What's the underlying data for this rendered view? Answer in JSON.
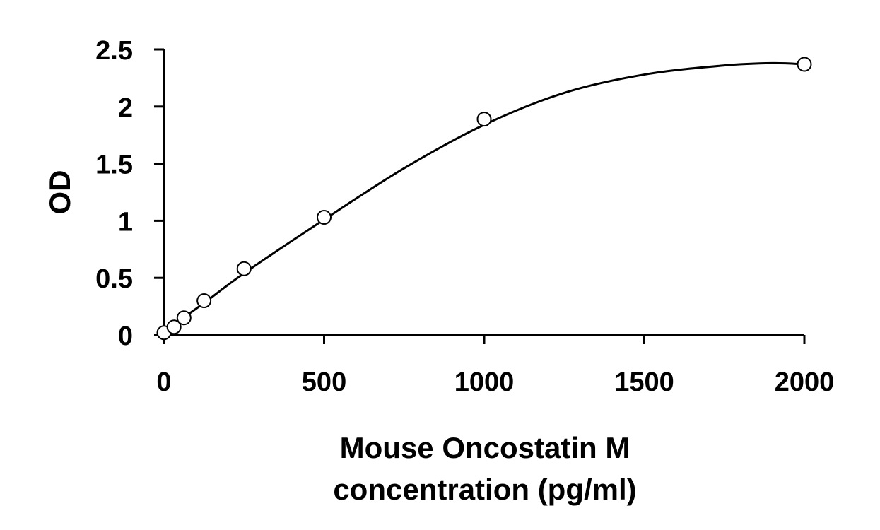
{
  "chart_data": {
    "type": "scatter",
    "title": "",
    "xlabel_lines": [
      "Mouse Oncostatin M",
      "concentration (pg/ml)"
    ],
    "ylabel": "OD",
    "xlim": [
      0,
      2000
    ],
    "ylim": [
      0,
      2.5
    ],
    "x_ticks": [
      0,
      500,
      1000,
      1500,
      2000
    ],
    "x_tick_labels": [
      "0",
      "500",
      "1000",
      "1500",
      "2000"
    ],
    "y_ticks": [
      0,
      0.5,
      1,
      1.5,
      2,
      2.5
    ],
    "y_tick_labels": [
      "0",
      "0.5",
      "1",
      "1.5",
      "2",
      "2.5"
    ],
    "grid": false,
    "legend": "none",
    "series": [
      {
        "points": [
          {
            "x": 0,
            "y": 0.02
          },
          {
            "x": 31.25,
            "y": 0.07
          },
          {
            "x": 62.5,
            "y": 0.15
          },
          {
            "x": 125,
            "y": 0.3
          },
          {
            "x": 250,
            "y": 0.58
          },
          {
            "x": 500,
            "y": 1.03
          },
          {
            "x": 1000,
            "y": 1.89
          },
          {
            "x": 2000,
            "y": 2.37
          }
        ]
      }
    ],
    "fit_curve": {
      "type": "polynomial",
      "note_x": [
        0,
        125,
        250,
        500,
        750,
        1000,
        1250,
        1500,
        1750,
        1900,
        2000
      ],
      "y": [
        0.03,
        0.28,
        0.54,
        1.01,
        1.46,
        1.84,
        2.12,
        2.28,
        2.36,
        2.38,
        2.37
      ]
    }
  }
}
